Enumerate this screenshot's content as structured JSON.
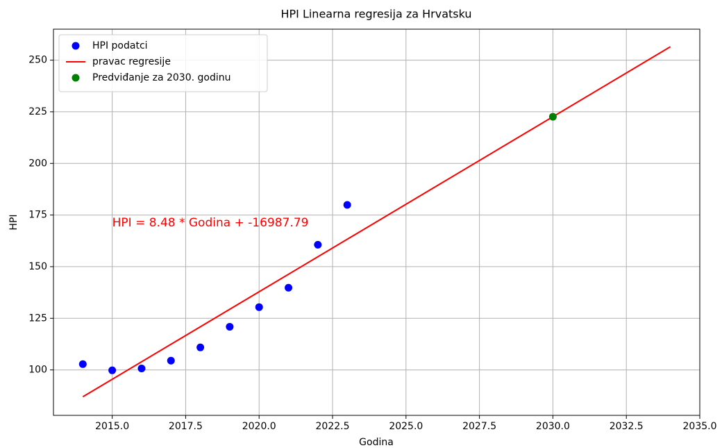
{
  "chart_data": {
    "type": "scatter",
    "title": "HPI Linearna regresija za Hrvatsku",
    "xlabel": "Godina",
    "ylabel": "HPI",
    "annotation": "HPI = 8.48 * Godina + -16987.79",
    "annotation_color": "#ff0000",
    "series": [
      {
        "name": "HPI podatci",
        "type": "scatter",
        "color": "#0000ff",
        "x": [
          2014,
          2015,
          2016,
          2017,
          2018,
          2019,
          2020,
          2021,
          2022,
          2023
        ],
        "values": [
          102.8,
          99.8,
          100.7,
          104.5,
          110.9,
          120.9,
          130.4,
          139.8,
          160.6,
          179.9
        ]
      },
      {
        "name": "pravac regresije",
        "type": "line",
        "color": "#ff0000",
        "x": [
          2014,
          2034
        ],
        "values": [
          87.0,
          256.5
        ]
      },
      {
        "name": "Predviđanje za 2030. godinu",
        "type": "scatter",
        "color": "#008000",
        "x": [
          2030
        ],
        "values": [
          222.6
        ]
      }
    ],
    "xlim": [
      2013,
      2035
    ],
    "ylim": [
      78,
      265
    ],
    "xticks": [
      {
        "value": 2015,
        "label": "2015.0"
      },
      2017.5,
      {
        "value": 2020,
        "label": "2020.0"
      },
      2022.5,
      {
        "value": 2025,
        "label": "2025.0"
      },
      2027.5,
      {
        "value": 2030,
        "label": "2030.0"
      },
      2032.5,
      {
        "value": 2035,
        "label": "2035.0"
      }
    ],
    "yticks": [
      100,
      125,
      150,
      175,
      200,
      225,
      250
    ],
    "grid": true,
    "legend": "upper left"
  }
}
